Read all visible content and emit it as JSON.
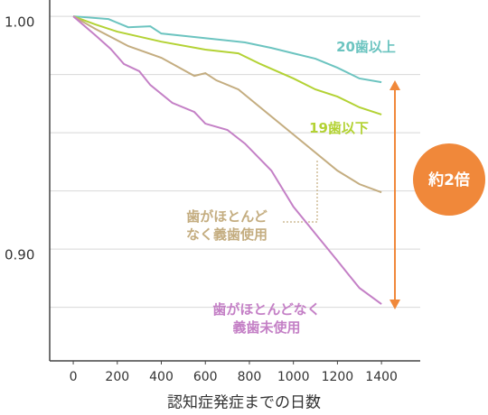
{
  "chart_data": {
    "type": "line",
    "x_label": "認知症発症までの日数",
    "xlim": [
      -107,
      1576
    ],
    "xticks": [
      0,
      200,
      400,
      600,
      800,
      1000,
      1200,
      1400
    ],
    "ylim": [
      0.852,
      1.007
    ],
    "yticks": [
      {
        "value": 1,
        "label": "1.00"
      },
      {
        "value": 0.9,
        "label": "0.90"
      }
    ],
    "ygrid": [
      1,
      0.975,
      0.95,
      0.925,
      0.9,
      0.875
    ],
    "annotation": "約2倍",
    "series": [
      {
        "name": "20歯以上",
        "color": "#6cc4c0",
        "x": [
          0,
          160,
          250,
          350,
          400,
          780,
          900,
          1000,
          1100,
          1200,
          1300,
          1400
        ],
        "values": [
          1.0,
          0.9988,
          0.9953,
          0.9957,
          0.9926,
          0.9888,
          0.9864,
          0.9841,
          0.9818,
          0.9779,
          0.9733,
          0.9717
        ]
      },
      {
        "name": "19歯以下",
        "color": "#b3d234",
        "x": [
          0,
          100,
          200,
          400,
          600,
          750,
          850,
          1000,
          1100,
          1200,
          1300,
          1400
        ],
        "values": [
          1.0,
          0.9965,
          0.9934,
          0.9891,
          0.9857,
          0.9841,
          0.9795,
          0.9733,
          0.9686,
          0.9655,
          0.9609,
          0.9578
        ]
      },
      {
        "name": "歯がほとんどなく義歯使用",
        "color": "#c4ad80",
        "x": [
          0,
          100,
          250,
          400,
          550,
          600,
          650,
          750,
          800,
          1000,
          1200,
          1300,
          1400
        ],
        "values": [
          1.0,
          0.9946,
          0.9872,
          0.9822,
          0.9744,
          0.9756,
          0.9725,
          0.9686,
          0.9647,
          0.9492,
          0.9337,
          0.9279,
          0.9244
        ]
      },
      {
        "name": "歯がほとんどなく義歯未使用",
        "color": "#c480c6",
        "x": [
          0,
          100,
          170,
          230,
          300,
          350,
          450,
          550,
          600,
          700,
          780,
          900,
          1000,
          1100,
          1200,
          1250,
          1300,
          1400
        ],
        "values": [
          1.0,
          0.9919,
          0.986,
          0.9795,
          0.9764,
          0.9705,
          0.9628,
          0.9589,
          0.9539,
          0.9512,
          0.9453,
          0.9337,
          0.9182,
          0.9066,
          0.895,
          0.8891,
          0.8833,
          0.8764
        ]
      }
    ]
  }
}
